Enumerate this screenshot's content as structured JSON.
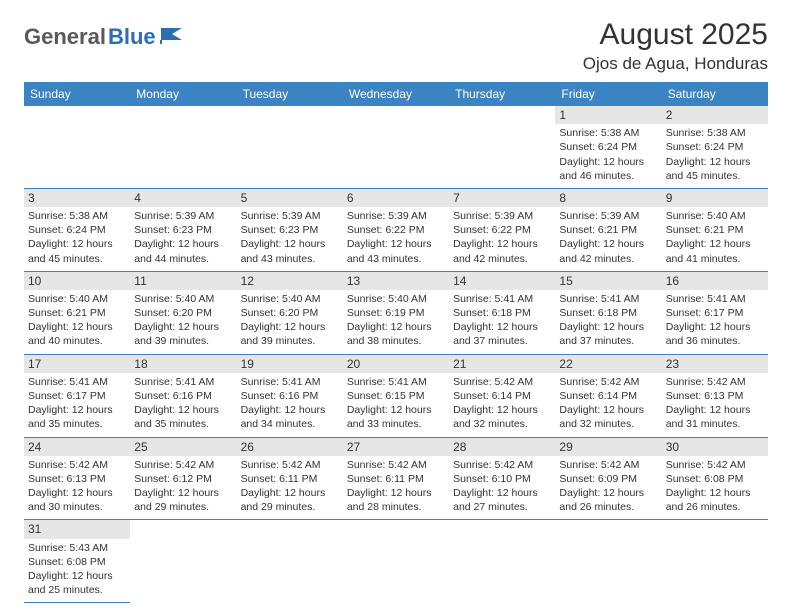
{
  "logo": {
    "text1": "General",
    "text2": "Blue"
  },
  "title": "August 2025",
  "location": "Ojos de Agua, Honduras",
  "colors": {
    "header_bg": "#3b83c3",
    "header_text": "#ffffff",
    "daynum_bg": "#e6e6e6",
    "border": "#3b83c3",
    "logo_gray": "#5a5a5a",
    "logo_blue": "#2a6fb5"
  },
  "weekdays": [
    "Sunday",
    "Monday",
    "Tuesday",
    "Wednesday",
    "Thursday",
    "Friday",
    "Saturday"
  ],
  "weeks": [
    [
      null,
      null,
      null,
      null,
      null,
      {
        "d": "1",
        "sr": "Sunrise: 5:38 AM",
        "ss": "Sunset: 6:24 PM",
        "dl": "Daylight: 12 hours and 46 minutes."
      },
      {
        "d": "2",
        "sr": "Sunrise: 5:38 AM",
        "ss": "Sunset: 6:24 PM",
        "dl": "Daylight: 12 hours and 45 minutes."
      }
    ],
    [
      {
        "d": "3",
        "sr": "Sunrise: 5:38 AM",
        "ss": "Sunset: 6:24 PM",
        "dl": "Daylight: 12 hours and 45 minutes."
      },
      {
        "d": "4",
        "sr": "Sunrise: 5:39 AM",
        "ss": "Sunset: 6:23 PM",
        "dl": "Daylight: 12 hours and 44 minutes."
      },
      {
        "d": "5",
        "sr": "Sunrise: 5:39 AM",
        "ss": "Sunset: 6:23 PM",
        "dl": "Daylight: 12 hours and 43 minutes."
      },
      {
        "d": "6",
        "sr": "Sunrise: 5:39 AM",
        "ss": "Sunset: 6:22 PM",
        "dl": "Daylight: 12 hours and 43 minutes."
      },
      {
        "d": "7",
        "sr": "Sunrise: 5:39 AM",
        "ss": "Sunset: 6:22 PM",
        "dl": "Daylight: 12 hours and 42 minutes."
      },
      {
        "d": "8",
        "sr": "Sunrise: 5:39 AM",
        "ss": "Sunset: 6:21 PM",
        "dl": "Daylight: 12 hours and 42 minutes."
      },
      {
        "d": "9",
        "sr": "Sunrise: 5:40 AM",
        "ss": "Sunset: 6:21 PM",
        "dl": "Daylight: 12 hours and 41 minutes."
      }
    ],
    [
      {
        "d": "10",
        "sr": "Sunrise: 5:40 AM",
        "ss": "Sunset: 6:21 PM",
        "dl": "Daylight: 12 hours and 40 minutes."
      },
      {
        "d": "11",
        "sr": "Sunrise: 5:40 AM",
        "ss": "Sunset: 6:20 PM",
        "dl": "Daylight: 12 hours and 39 minutes."
      },
      {
        "d": "12",
        "sr": "Sunrise: 5:40 AM",
        "ss": "Sunset: 6:20 PM",
        "dl": "Daylight: 12 hours and 39 minutes."
      },
      {
        "d": "13",
        "sr": "Sunrise: 5:40 AM",
        "ss": "Sunset: 6:19 PM",
        "dl": "Daylight: 12 hours and 38 minutes."
      },
      {
        "d": "14",
        "sr": "Sunrise: 5:41 AM",
        "ss": "Sunset: 6:18 PM",
        "dl": "Daylight: 12 hours and 37 minutes."
      },
      {
        "d": "15",
        "sr": "Sunrise: 5:41 AM",
        "ss": "Sunset: 6:18 PM",
        "dl": "Daylight: 12 hours and 37 minutes."
      },
      {
        "d": "16",
        "sr": "Sunrise: 5:41 AM",
        "ss": "Sunset: 6:17 PM",
        "dl": "Daylight: 12 hours and 36 minutes."
      }
    ],
    [
      {
        "d": "17",
        "sr": "Sunrise: 5:41 AM",
        "ss": "Sunset: 6:17 PM",
        "dl": "Daylight: 12 hours and 35 minutes."
      },
      {
        "d": "18",
        "sr": "Sunrise: 5:41 AM",
        "ss": "Sunset: 6:16 PM",
        "dl": "Daylight: 12 hours and 35 minutes."
      },
      {
        "d": "19",
        "sr": "Sunrise: 5:41 AM",
        "ss": "Sunset: 6:16 PM",
        "dl": "Daylight: 12 hours and 34 minutes."
      },
      {
        "d": "20",
        "sr": "Sunrise: 5:41 AM",
        "ss": "Sunset: 6:15 PM",
        "dl": "Daylight: 12 hours and 33 minutes."
      },
      {
        "d": "21",
        "sr": "Sunrise: 5:42 AM",
        "ss": "Sunset: 6:14 PM",
        "dl": "Daylight: 12 hours and 32 minutes."
      },
      {
        "d": "22",
        "sr": "Sunrise: 5:42 AM",
        "ss": "Sunset: 6:14 PM",
        "dl": "Daylight: 12 hours and 32 minutes."
      },
      {
        "d": "23",
        "sr": "Sunrise: 5:42 AM",
        "ss": "Sunset: 6:13 PM",
        "dl": "Daylight: 12 hours and 31 minutes."
      }
    ],
    [
      {
        "d": "24",
        "sr": "Sunrise: 5:42 AM",
        "ss": "Sunset: 6:13 PM",
        "dl": "Daylight: 12 hours and 30 minutes."
      },
      {
        "d": "25",
        "sr": "Sunrise: 5:42 AM",
        "ss": "Sunset: 6:12 PM",
        "dl": "Daylight: 12 hours and 29 minutes."
      },
      {
        "d": "26",
        "sr": "Sunrise: 5:42 AM",
        "ss": "Sunset: 6:11 PM",
        "dl": "Daylight: 12 hours and 29 minutes."
      },
      {
        "d": "27",
        "sr": "Sunrise: 5:42 AM",
        "ss": "Sunset: 6:11 PM",
        "dl": "Daylight: 12 hours and 28 minutes."
      },
      {
        "d": "28",
        "sr": "Sunrise: 5:42 AM",
        "ss": "Sunset: 6:10 PM",
        "dl": "Daylight: 12 hours and 27 minutes."
      },
      {
        "d": "29",
        "sr": "Sunrise: 5:42 AM",
        "ss": "Sunset: 6:09 PM",
        "dl": "Daylight: 12 hours and 26 minutes."
      },
      {
        "d": "30",
        "sr": "Sunrise: 5:42 AM",
        "ss": "Sunset: 6:08 PM",
        "dl": "Daylight: 12 hours and 26 minutes."
      }
    ],
    [
      {
        "d": "31",
        "sr": "Sunrise: 5:43 AM",
        "ss": "Sunset: 6:08 PM",
        "dl": "Daylight: 12 hours and 25 minutes."
      },
      null,
      null,
      null,
      null,
      null,
      null
    ]
  ]
}
